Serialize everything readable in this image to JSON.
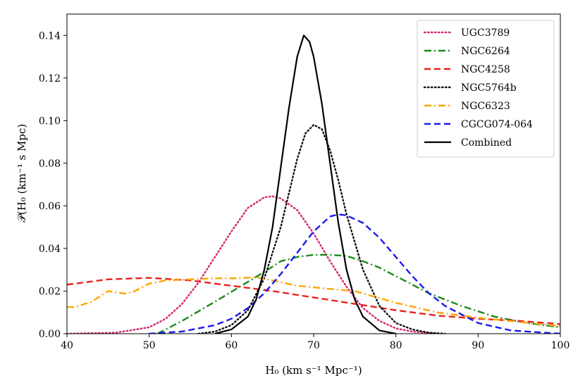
{
  "chart_data": {
    "type": "line",
    "title": "",
    "xlabel": "H₀ (km s⁻¹ Mpc⁻¹)",
    "ylabel": "𝒫(H₀ (km⁻¹ s Mpc)",
    "xlim": [
      40,
      100
    ],
    "ylim": [
      0,
      0.15
    ],
    "xticks": [
      40,
      50,
      60,
      70,
      80,
      90,
      100
    ],
    "yticks": [
      0.0,
      0.02,
      0.04,
      0.06,
      0.08,
      0.1,
      0.12,
      0.14
    ],
    "xtick_labels": [
      "40",
      "50",
      "60",
      "70",
      "80",
      "90",
      "100"
    ],
    "ytick_labels": [
      "0.00",
      "0.02",
      "0.04",
      "0.06",
      "0.08",
      "0.10",
      "0.12",
      "0.14"
    ],
    "legend_position": "top-right",
    "series": [
      {
        "name": "UGC3789",
        "color": "#d6226f",
        "style": "dotted",
        "x": [
          40,
          46,
          50,
          52,
          54,
          56,
          58,
          60,
          62,
          64,
          65,
          66,
          68,
          70,
          72,
          74,
          76,
          78,
          80,
          82,
          85
        ],
        "y": [
          0.0,
          0.0005,
          0.003,
          0.007,
          0.014,
          0.024,
          0.036,
          0.048,
          0.059,
          0.064,
          0.0645,
          0.0635,
          0.058,
          0.047,
          0.034,
          0.022,
          0.012,
          0.006,
          0.0025,
          0.001,
          0.0
        ]
      },
      {
        "name": "NGC6264",
        "color": "#1a8a1a",
        "style": "dashdot",
        "x": [
          51,
          54,
          58,
          61,
          64,
          66,
          68,
          70,
          72,
          74,
          76,
          78,
          80,
          84,
          88,
          92,
          96,
          100
        ],
        "y": [
          0.0,
          0.006,
          0.015,
          0.022,
          0.029,
          0.034,
          0.036,
          0.037,
          0.037,
          0.0365,
          0.034,
          0.031,
          0.027,
          0.019,
          0.013,
          0.008,
          0.005,
          0.003
        ]
      },
      {
        "name": "NGC4258",
        "color": "#e8221a",
        "style": "dashed",
        "x": [
          40,
          45,
          50,
          55,
          60,
          65,
          70,
          75,
          80,
          85,
          90,
          95,
          100
        ],
        "y": [
          0.023,
          0.0255,
          0.0262,
          0.025,
          0.0225,
          0.02,
          0.017,
          0.014,
          0.011,
          0.0085,
          0.007,
          0.006,
          0.0045
        ]
      },
      {
        "name": "NGC5764b",
        "color": "#111111",
        "style": "dotted",
        "x": [
          56,
          58,
          60,
          62,
          64,
          66,
          67,
          68,
          69,
          70,
          71,
          72,
          73,
          74,
          76,
          78,
          80,
          82,
          84,
          86
        ],
        "y": [
          0.0,
          0.001,
          0.004,
          0.011,
          0.026,
          0.05,
          0.066,
          0.082,
          0.094,
          0.098,
          0.096,
          0.086,
          0.072,
          0.056,
          0.03,
          0.013,
          0.005,
          0.002,
          0.0005,
          0.0
        ]
      },
      {
        "name": "NGC6323",
        "color": "#ffa500",
        "style": "dashdot",
        "x": [
          40,
          41,
          43,
          45,
          47,
          48,
          50,
          52,
          55,
          58,
          61,
          63,
          65,
          68,
          72,
          75,
          80,
          85,
          90,
          95,
          100
        ],
        "y": [
          0.0125,
          0.0125,
          0.015,
          0.02,
          0.0188,
          0.0195,
          0.0235,
          0.025,
          0.0255,
          0.026,
          0.026,
          0.0265,
          0.025,
          0.0225,
          0.021,
          0.02,
          0.0145,
          0.01,
          0.0075,
          0.0055,
          0.0035
        ]
      },
      {
        "name": "CGCG074-064",
        "color": "#1a1aee",
        "style": "dashed",
        "x": [
          50,
          54,
          58,
          60,
          62,
          64,
          66,
          68,
          70,
          72,
          73,
          74,
          76,
          78,
          80,
          82,
          84,
          86,
          90,
          94,
          100
        ],
        "y": [
          0.0,
          0.001,
          0.004,
          0.007,
          0.012,
          0.019,
          0.028,
          0.038,
          0.048,
          0.055,
          0.056,
          0.0555,
          0.052,
          0.045,
          0.036,
          0.027,
          0.019,
          0.013,
          0.005,
          0.0015,
          0.0
        ]
      },
      {
        "name": "Combined",
        "color": "#000000",
        "style": "solid",
        "x": [
          58,
          60,
          62,
          63,
          64,
          65,
          66,
          67,
          68,
          68.8,
          69.5,
          70,
          71,
          72,
          73,
          74,
          75,
          76,
          78,
          80
        ],
        "y": [
          0.0,
          0.002,
          0.008,
          0.016,
          0.03,
          0.05,
          0.078,
          0.106,
          0.13,
          0.14,
          0.137,
          0.13,
          0.108,
          0.08,
          0.052,
          0.03,
          0.016,
          0.008,
          0.0015,
          0.0
        ]
      }
    ]
  }
}
